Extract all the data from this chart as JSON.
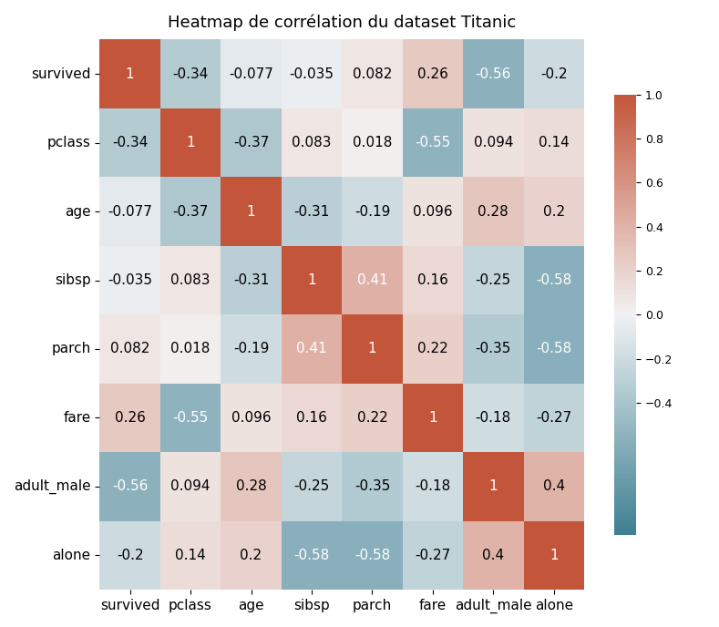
{
  "title": "Heatmap de corrélation du dataset Titanic",
  "labels": [
    "survived",
    "pclass",
    "age",
    "sibsp",
    "parch",
    "fare",
    "adult_male",
    "alone"
  ],
  "matrix": [
    [
      1.0,
      -0.34,
      -0.077,
      -0.035,
      0.082,
      0.26,
      -0.56,
      -0.2
    ],
    [
      -0.34,
      1.0,
      -0.37,
      0.083,
      0.018,
      -0.55,
      0.094,
      0.14
    ],
    [
      -0.077,
      -0.37,
      1.0,
      -0.31,
      -0.19,
      0.096,
      0.28,
      0.2
    ],
    [
      -0.035,
      0.083,
      -0.31,
      1.0,
      0.41,
      0.16,
      -0.25,
      -0.58
    ],
    [
      0.082,
      0.018,
      -0.19,
      0.41,
      1.0,
      0.22,
      -0.35,
      -0.58
    ],
    [
      0.26,
      -0.55,
      0.096,
      0.16,
      0.22,
      1.0,
      -0.18,
      -0.27
    ],
    [
      -0.56,
      0.094,
      0.28,
      -0.25,
      -0.35,
      -0.18,
      1.0,
      0.4
    ],
    [
      -0.2,
      0.14,
      0.2,
      -0.58,
      -0.58,
      -0.27,
      0.4,
      1.0
    ]
  ],
  "annotations": [
    [
      "1",
      "-0.34",
      "-0.077",
      "-0.035",
      "0.082",
      "0.26",
      "-0.56",
      "-0.2"
    ],
    [
      "-0.34",
      "1",
      "-0.37",
      "0.083",
      "0.018",
      "-0.55",
      "0.094",
      "0.14"
    ],
    [
      "-0.077",
      "-0.37",
      "1",
      "-0.31",
      "-0.19",
      "0.096",
      "0.28",
      "0.2"
    ],
    [
      "-0.035",
      "0.083",
      "-0.31",
      "1",
      "0.41",
      "0.16",
      "-0.25",
      "-0.58"
    ],
    [
      "0.082",
      "0.018",
      "-0.19",
      "0.41",
      "1",
      "0.22",
      "-0.35",
      "-0.58"
    ],
    [
      "0.26",
      "-0.55",
      "0.096",
      "0.16",
      "0.22",
      "1",
      "-0.18",
      "-0.27"
    ],
    [
      "-0.56",
      "0.094",
      "0.28",
      "-0.25",
      "-0.35",
      "-0.18",
      "1",
      "0.4"
    ],
    [
      "-0.2",
      "0.14",
      "0.2",
      "-0.58",
      "-0.58",
      "-0.27",
      "0.4",
      "1"
    ]
  ],
  "vmin": -1.0,
  "vmax": 1.0,
  "title_fontsize": 13,
  "annot_fontsize": 11,
  "label_fontsize": 11,
  "figsize": [
    7.89,
    6.88
  ],
  "dpi": 100,
  "bg_color": "#f0f0f0",
  "white_text_threshold": 0.4
}
